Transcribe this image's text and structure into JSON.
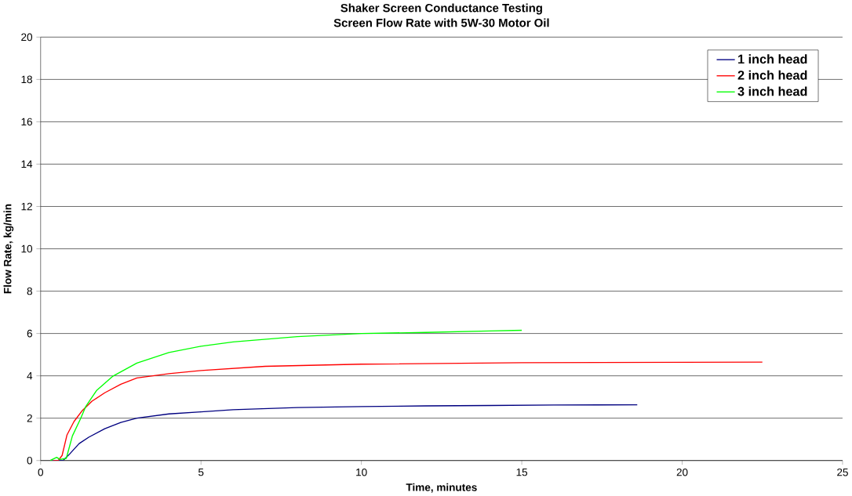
{
  "chart_data": {
    "type": "line",
    "title": "Shaker Screen Conductance Testing",
    "subtitle": "Screen Flow Rate with 5W-30 Motor Oil",
    "xlabel": "Time, minutes",
    "ylabel": "Flow Rate, kg/min",
    "xlim": [
      0,
      25
    ],
    "ylim": [
      0,
      20
    ],
    "xticks": [
      0,
      5,
      10,
      15,
      20,
      25
    ],
    "yticks": [
      0,
      2,
      4,
      6,
      8,
      10,
      12,
      14,
      16,
      18,
      20
    ],
    "grid": "y",
    "legend": "top right",
    "line_style": "solid",
    "series": [
      {
        "name": "1 inch head",
        "color": "#000080",
        "x": [
          0.4,
          0.7,
          0.9,
          1.2,
          1.5,
          2,
          2.5,
          3,
          4,
          5,
          6,
          8,
          10,
          12,
          14,
          16,
          18.6
        ],
        "values": [
          0,
          0,
          0.3,
          0.8,
          1.1,
          1.5,
          1.8,
          2.0,
          2.2,
          2.3,
          2.4,
          2.5,
          2.55,
          2.58,
          2.6,
          2.62,
          2.63
        ]
      },
      {
        "name": "2 inch head",
        "color": "#ff0000",
        "x": [
          0.4,
          0.55,
          0.67,
          0.82,
          1.04,
          1.3,
          1.6,
          2,
          2.5,
          3,
          4,
          5,
          7,
          10,
          15,
          20,
          22.5
        ],
        "values": [
          0,
          0,
          0.24,
          1.2,
          1.84,
          2.36,
          2.8,
          3.2,
          3.6,
          3.9,
          4.1,
          4.25,
          4.45,
          4.55,
          4.62,
          4.64,
          4.65
        ]
      },
      {
        "name": "3 inch head",
        "color": "#00ff00",
        "x": [
          0.3,
          0.5,
          0.6,
          0.8,
          0.99,
          1.24,
          1.41,
          1.74,
          2.24,
          3,
          4,
          5,
          6,
          8,
          10,
          12,
          14,
          15
        ],
        "values": [
          0,
          0.15,
          0.05,
          0.1,
          1.16,
          1.96,
          2.56,
          3.3,
          3.97,
          4.6,
          5.1,
          5.4,
          5.6,
          5.85,
          6.0,
          6.05,
          6.12,
          6.15
        ]
      }
    ]
  }
}
